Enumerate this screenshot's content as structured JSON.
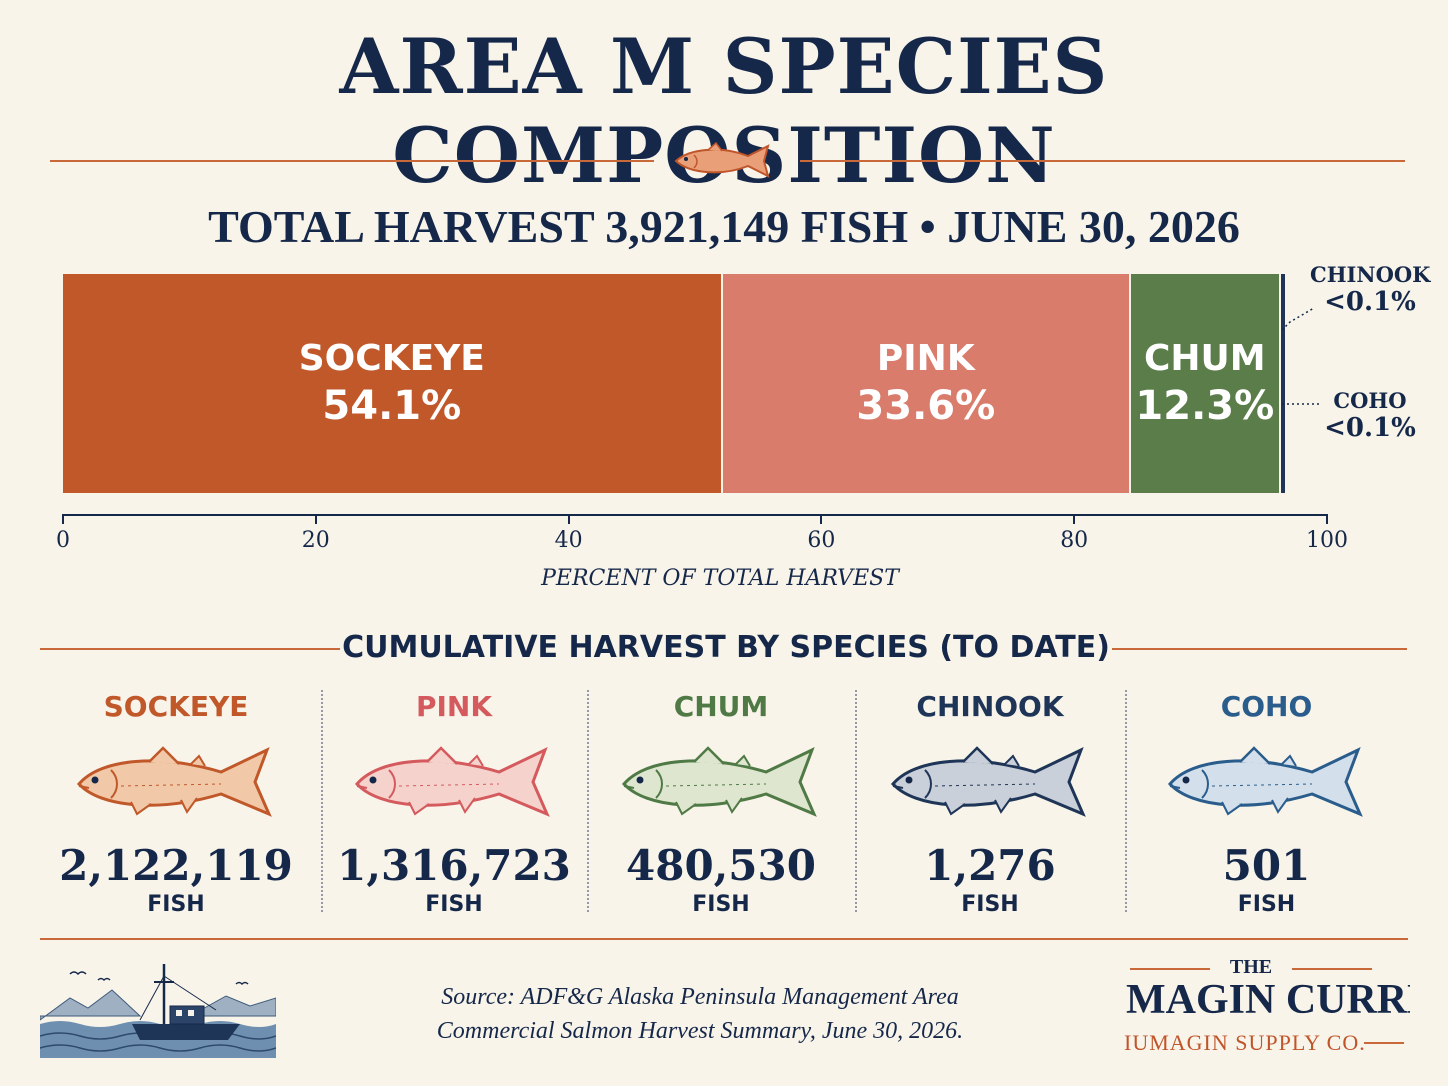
{
  "title": "AREA M SPECIES COMPOSITION",
  "subtitle": "TOTAL HARVEST 3,921,149 FISH • JUNE 30, 2026",
  "colors": {
    "sockeye": "#c0582a",
    "pink": "#d97c6b",
    "chum": "#5a7d4a",
    "chinook": "#1f3557",
    "coho": "#2a5d8c",
    "navy": "#16284a",
    "accent": "#c9693a"
  },
  "chart_data": {
    "type": "bar",
    "orientation": "horizontal-stacked",
    "title": "TOTAL HARVEST 3,921,149 FISH • JUNE 30, 2026",
    "xlabel": "PERCENT OF TOTAL HARVEST",
    "xlim": [
      0,
      100
    ],
    "xticks": [
      "0",
      "20",
      "40",
      "60",
      "80",
      "100"
    ],
    "segments": [
      {
        "name": "SOCKEYE",
        "value": 54.1,
        "label": "54.1%"
      },
      {
        "name": "PINK",
        "value": 33.6,
        "label": "33.6%"
      },
      {
        "name": "CHUM",
        "value": 12.3,
        "label": "12.3%"
      },
      {
        "name": "CHINOOK",
        "value": 0.1,
        "label": "<0.1%"
      },
      {
        "name": "COHO",
        "value": 0.1,
        "label": "<0.1%"
      }
    ]
  },
  "callouts": {
    "chinook": {
      "name": "CHINOOK",
      "pct": "<0.1%"
    },
    "coho": {
      "name": "COHO",
      "pct": "<0.1%"
    }
  },
  "cumulative": {
    "title": "CUMULATIVE HARVEST BY SPECIES (TO DATE)",
    "unit": "FISH",
    "species": [
      {
        "name": "SOCKEYE",
        "count": "2,122,119",
        "icon": "sockeye-fish-icon",
        "color": "#c0582a",
        "fill": "#f2c9a8"
      },
      {
        "name": "PINK",
        "count": "1,316,723",
        "icon": "pink-fish-icon",
        "color": "#d45a5e",
        "fill": "#f5d3cc"
      },
      {
        "name": "CHUM",
        "count": "480,530",
        "icon": "chum-fish-icon",
        "color": "#4f7a45",
        "fill": "#dfe6cf"
      },
      {
        "name": "CHINOOK",
        "count": "1,276",
        "icon": "chinook-fish-icon",
        "color": "#1f3557",
        "fill": "#c9d0da"
      },
      {
        "name": "COHO",
        "count": "501",
        "icon": "coho-fish-icon",
        "color": "#2a5d8c",
        "fill": "#d3e0ec"
      }
    ]
  },
  "footer": {
    "source_line1": "Source: ADF&G Alaska Peninsula Management Area",
    "source_line2": "Commercial Salmon Harvest Summary, June 30, 2026.",
    "brand_the": "THE",
    "brand_main": "MAGIN CURRENT",
    "brand_sub": "IUMAGIN SUPPLY CO."
  }
}
